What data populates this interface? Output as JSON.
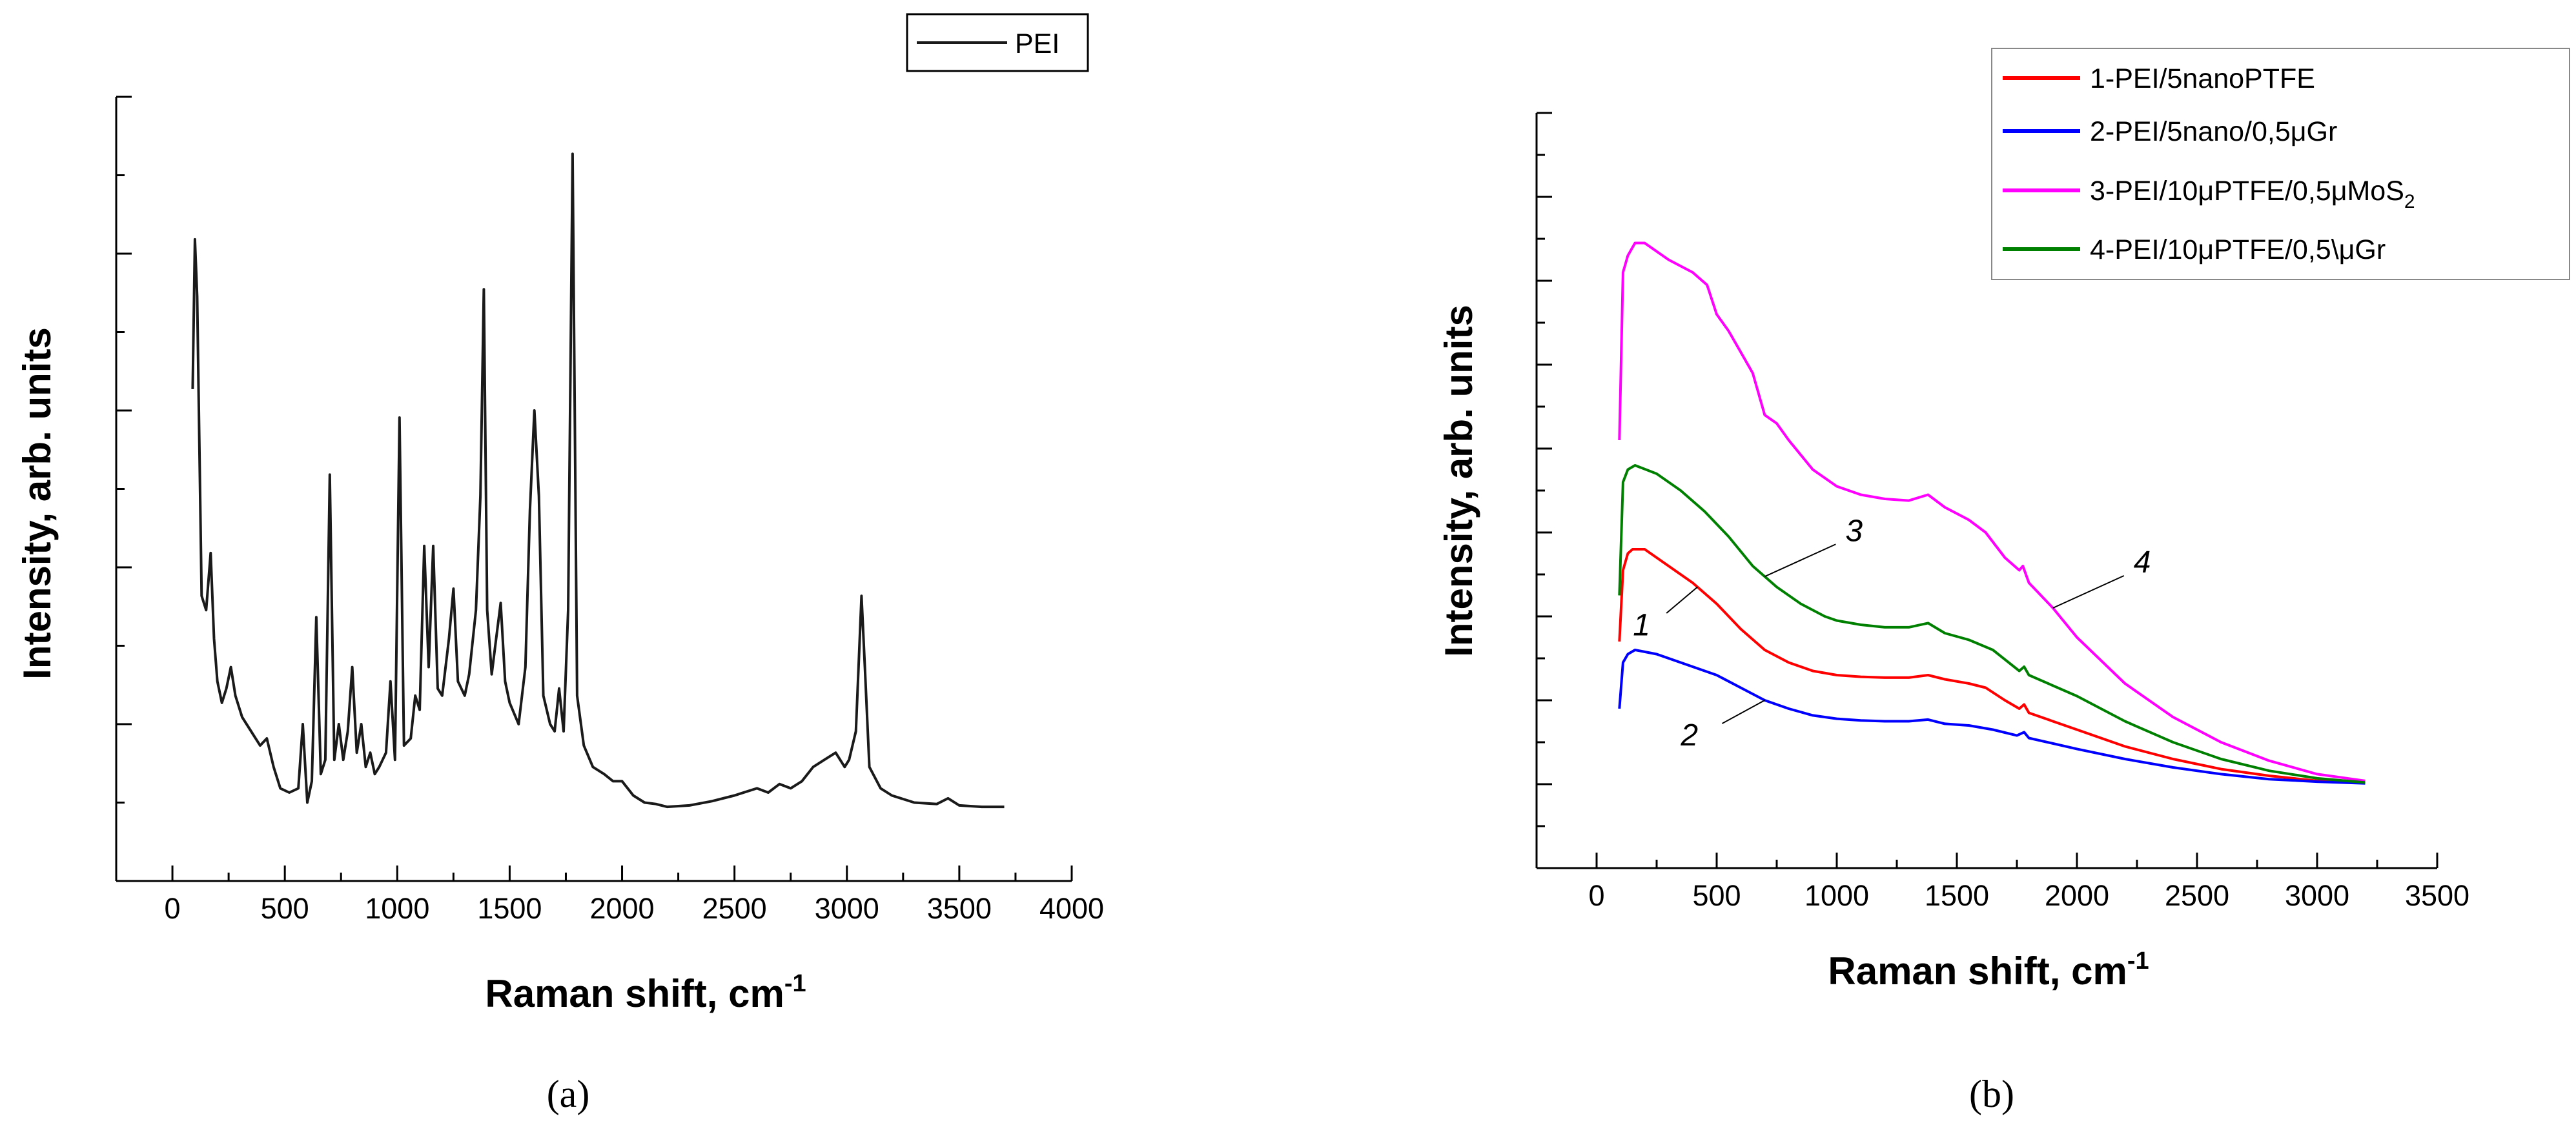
{
  "chart_data": [
    {
      "type": "line",
      "panel_label": "(a)",
      "xlabel": "Raman shift, cm",
      "xlabel_sup": "-1",
      "ylabel": "Intensity, arb. units",
      "xlim": [
        -250,
        4000
      ],
      "ylim": [
        -0.5,
        5.0
      ],
      "xticks": [
        "0",
        "500",
        "1000",
        "1500",
        "2000",
        "2500",
        "3000",
        "3500",
        "4000"
      ],
      "xtick_values": [
        0,
        500,
        1000,
        1500,
        2000,
        2500,
        3000,
        3500,
        4000
      ],
      "yticks_labeled": false,
      "legend_position": "top-right",
      "series": [
        {
          "name": "PEI",
          "color": "#1a1a1a",
          "points": [
            [
              90,
              2.95
            ],
            [
              100,
              4.0
            ],
            [
              110,
              3.6
            ],
            [
              130,
              1.5
            ],
            [
              150,
              1.4
            ],
            [
              170,
              1.8
            ],
            [
              185,
              1.2
            ],
            [
              200,
              0.9
            ],
            [
              220,
              0.75
            ],
            [
              240,
              0.85
            ],
            [
              260,
              1.0
            ],
            [
              280,
              0.8
            ],
            [
              310,
              0.65
            ],
            [
              350,
              0.55
            ],
            [
              390,
              0.45
            ],
            [
              420,
              0.5
            ],
            [
              450,
              0.3
            ],
            [
              480,
              0.15
            ],
            [
              520,
              0.12
            ],
            [
              560,
              0.15
            ],
            [
              580,
              0.6
            ],
            [
              600,
              0.05
            ],
            [
              620,
              0.2
            ],
            [
              640,
              1.35
            ],
            [
              660,
              0.25
            ],
            [
              680,
              0.35
            ],
            [
              700,
              2.35
            ],
            [
              720,
              0.35
            ],
            [
              740,
              0.6
            ],
            [
              760,
              0.35
            ],
            [
              780,
              0.55
            ],
            [
              800,
              1.0
            ],
            [
              820,
              0.4
            ],
            [
              840,
              0.6
            ],
            [
              860,
              0.3
            ],
            [
              880,
              0.4
            ],
            [
              900,
              0.25
            ],
            [
              920,
              0.3
            ],
            [
              950,
              0.4
            ],
            [
              970,
              0.9
            ],
            [
              990,
              0.35
            ],
            [
              1010,
              2.75
            ],
            [
              1030,
              0.45
            ],
            [
              1060,
              0.5
            ],
            [
              1080,
              0.8
            ],
            [
              1100,
              0.7
            ],
            [
              1120,
              1.85
            ],
            [
              1140,
              1.0
            ],
            [
              1160,
              1.85
            ],
            [
              1180,
              0.85
            ],
            [
              1200,
              0.8
            ],
            [
              1230,
              1.2
            ],
            [
              1250,
              1.55
            ],
            [
              1270,
              0.9
            ],
            [
              1300,
              0.8
            ],
            [
              1320,
              0.95
            ],
            [
              1350,
              1.4
            ],
            [
              1370,
              2.2
            ],
            [
              1385,
              3.65
            ],
            [
              1400,
              1.4
            ],
            [
              1420,
              0.95
            ],
            [
              1440,
              1.2
            ],
            [
              1460,
              1.45
            ],
            [
              1480,
              0.9
            ],
            [
              1500,
              0.75
            ],
            [
              1540,
              0.6
            ],
            [
              1570,
              1.0
            ],
            [
              1590,
              2.1
            ],
            [
              1610,
              2.8
            ],
            [
              1630,
              2.2
            ],
            [
              1650,
              0.8
            ],
            [
              1680,
              0.6
            ],
            [
              1700,
              0.55
            ],
            [
              1720,
              0.85
            ],
            [
              1740,
              0.55
            ],
            [
              1760,
              1.4
            ],
            [
              1780,
              4.6
            ],
            [
              1800,
              0.8
            ],
            [
              1830,
              0.45
            ],
            [
              1870,
              0.3
            ],
            [
              1920,
              0.25
            ],
            [
              1960,
              0.2
            ],
            [
              2000,
              0.2
            ],
            [
              2050,
              0.1
            ],
            [
              2100,
              0.05
            ],
            [
              2150,
              0.04
            ],
            [
              2200,
              0.02
            ],
            [
              2300,
              0.03
            ],
            [
              2400,
              0.06
            ],
            [
              2500,
              0.1
            ],
            [
              2600,
              0.15
            ],
            [
              2650,
              0.12
            ],
            [
              2700,
              0.18
            ],
            [
              2750,
              0.15
            ],
            [
              2800,
              0.2
            ],
            [
              2850,
              0.3
            ],
            [
              2900,
              0.35
            ],
            [
              2950,
              0.4
            ],
            [
              2990,
              0.3
            ],
            [
              3010,
              0.35
            ],
            [
              3040,
              0.55
            ],
            [
              3065,
              1.5
            ],
            [
              3080,
              1.0
            ],
            [
              3100,
              0.3
            ],
            [
              3150,
              0.15
            ],
            [
              3200,
              0.1
            ],
            [
              3300,
              0.05
            ],
            [
              3400,
              0.04
            ],
            [
              3450,
              0.08
            ],
            [
              3500,
              0.03
            ],
            [
              3600,
              0.02
            ],
            [
              3700,
              0.02
            ]
          ]
        }
      ]
    },
    {
      "type": "line",
      "panel_label": "(b)",
      "xlabel": "Raman shift, cm",
      "xlabel_sup": "-1",
      "ylabel": "Intensity, arb. units",
      "xlim": [
        -250,
        3500
      ],
      "ylim": [
        -1.0,
        8.0
      ],
      "xticks": [
        "0",
        "500",
        "1000",
        "1500",
        "2000",
        "2500",
        "3000",
        "3500"
      ],
      "xtick_values": [
        0,
        500,
        1000,
        1500,
        2000,
        2500,
        3000,
        3500
      ],
      "yticks_labeled": false,
      "legend_position": "top-right",
      "series": [
        {
          "name": "1-PEI/5nanoPTFE",
          "color": "#ff0000",
          "points": [
            [
              95,
              1.7
            ],
            [
              110,
              2.55
            ],
            [
              130,
              2.75
            ],
            [
              150,
              2.8
            ],
            [
              200,
              2.8
            ],
            [
              300,
              2.6
            ],
            [
              400,
              2.4
            ],
            [
              500,
              2.15
            ],
            [
              600,
              1.85
            ],
            [
              700,
              1.6
            ],
            [
              800,
              1.45
            ],
            [
              900,
              1.35
            ],
            [
              1000,
              1.3
            ],
            [
              1100,
              1.28
            ],
            [
              1200,
              1.27
            ],
            [
              1300,
              1.27
            ],
            [
              1380,
              1.3
            ],
            [
              1450,
              1.25
            ],
            [
              1550,
              1.2
            ],
            [
              1620,
              1.15
            ],
            [
              1700,
              1.0
            ],
            [
              1760,
              0.9
            ],
            [
              1780,
              0.95
            ],
            [
              1800,
              0.85
            ],
            [
              2000,
              0.65
            ],
            [
              2200,
              0.45
            ],
            [
              2400,
              0.3
            ],
            [
              2600,
              0.18
            ],
            [
              2800,
              0.1
            ],
            [
              3000,
              0.04
            ],
            [
              3200,
              0.02
            ]
          ]
        },
        {
          "name": "2-PEI/5nano/0,5μGr",
          "color": "#0000ff",
          "points": [
            [
              95,
              0.9
            ],
            [
              110,
              1.45
            ],
            [
              130,
              1.55
            ],
            [
              160,
              1.6
            ],
            [
              250,
              1.55
            ],
            [
              350,
              1.45
            ],
            [
              500,
              1.3
            ],
            [
              600,
              1.15
            ],
            [
              700,
              1.0
            ],
            [
              800,
              0.9
            ],
            [
              900,
              0.82
            ],
            [
              1000,
              0.78
            ],
            [
              1100,
              0.76
            ],
            [
              1200,
              0.75
            ],
            [
              1300,
              0.75
            ],
            [
              1380,
              0.77
            ],
            [
              1450,
              0.72
            ],
            [
              1550,
              0.7
            ],
            [
              1650,
              0.65
            ],
            [
              1750,
              0.58
            ],
            [
              1780,
              0.62
            ],
            [
              1800,
              0.55
            ],
            [
              2000,
              0.42
            ],
            [
              2200,
              0.3
            ],
            [
              2400,
              0.2
            ],
            [
              2600,
              0.12
            ],
            [
              2800,
              0.06
            ],
            [
              3000,
              0.03
            ],
            [
              3200,
              0.01
            ]
          ]
        },
        {
          "name": "3-PEI/10μPTFE/0,5μMoS",
          "name_sub": "2",
          "color": "#ff00ff",
          "points": [
            [
              95,
              4.1
            ],
            [
              110,
              6.1
            ],
            [
              130,
              6.3
            ],
            [
              160,
              6.45
            ],
            [
              200,
              6.45
            ],
            [
              300,
              6.25
            ],
            [
              400,
              6.1
            ],
            [
              460,
              5.95
            ],
            [
              500,
              5.6
            ],
            [
              550,
              5.4
            ],
            [
              600,
              5.15
            ],
            [
              650,
              4.9
            ],
            [
              700,
              4.4
            ],
            [
              750,
              4.3
            ],
            [
              800,
              4.1
            ],
            [
              900,
              3.75
            ],
            [
              1000,
              3.55
            ],
            [
              1100,
              3.45
            ],
            [
              1200,
              3.4
            ],
            [
              1300,
              3.38
            ],
            [
              1380,
              3.45
            ],
            [
              1450,
              3.3
            ],
            [
              1550,
              3.15
            ],
            [
              1620,
              3.0
            ],
            [
              1700,
              2.7
            ],
            [
              1760,
              2.55
            ],
            [
              1775,
              2.6
            ],
            [
              1800,
              2.4
            ],
            [
              1900,
              2.1
            ],
            [
              2000,
              1.75
            ],
            [
              2200,
              1.2
            ],
            [
              2400,
              0.8
            ],
            [
              2600,
              0.5
            ],
            [
              2800,
              0.28
            ],
            [
              3000,
              0.12
            ],
            [
              3200,
              0.04
            ]
          ]
        },
        {
          "name": "4-PEI/10μPTFE/0,5\\μGr",
          "color": "#008000",
          "points": [
            [
              95,
              2.25
            ],
            [
              110,
              3.6
            ],
            [
              130,
              3.75
            ],
            [
              160,
              3.8
            ],
            [
              250,
              3.7
            ],
            [
              350,
              3.5
            ],
            [
              450,
              3.25
            ],
            [
              550,
              2.95
            ],
            [
              650,
              2.6
            ],
            [
              750,
              2.35
            ],
            [
              850,
              2.15
            ],
            [
              950,
              2.0
            ],
            [
              1000,
              1.95
            ],
            [
              1100,
              1.9
            ],
            [
              1200,
              1.87
            ],
            [
              1300,
              1.87
            ],
            [
              1380,
              1.92
            ],
            [
              1450,
              1.8
            ],
            [
              1550,
              1.72
            ],
            [
              1650,
              1.6
            ],
            [
              1760,
              1.35
            ],
            [
              1780,
              1.4
            ],
            [
              1800,
              1.3
            ],
            [
              2000,
              1.05
            ],
            [
              2200,
              0.75
            ],
            [
              2400,
              0.5
            ],
            [
              2600,
              0.3
            ],
            [
              2800,
              0.16
            ],
            [
              3000,
              0.07
            ],
            [
              3200,
              0.02
            ]
          ]
        }
      ],
      "annotations": [
        {
          "text": "1",
          "target_series": 0,
          "at_x": 420
        },
        {
          "text": "2",
          "target_series": 1,
          "at_x": 700
        },
        {
          "text": "3",
          "target_series": 3,
          "at_x": 700
        },
        {
          "text": "4",
          "target_series": 2,
          "at_x": 1900
        }
      ]
    }
  ]
}
